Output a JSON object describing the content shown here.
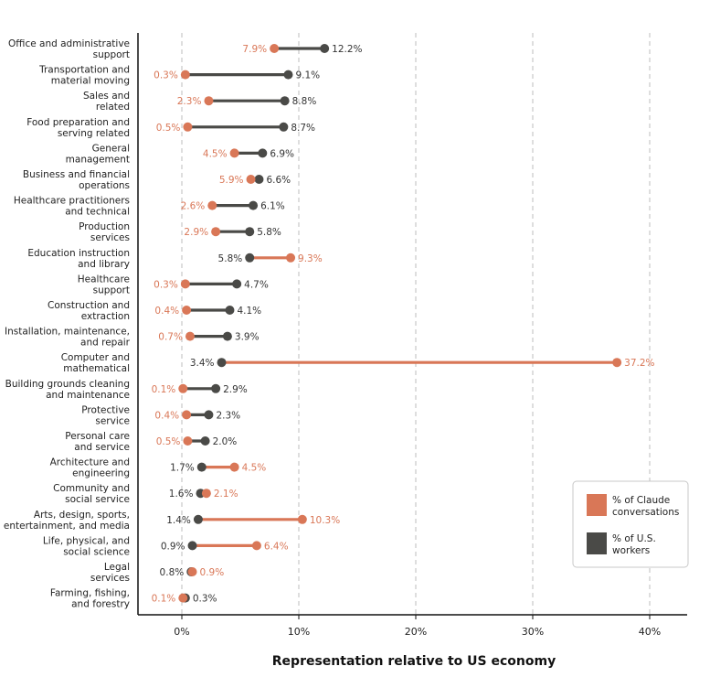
{
  "chart_data": {
    "type": "dumbbell",
    "xlabel": "Representation relative to US economy",
    "xlim": [
      -4,
      43
    ],
    "xticks": [
      "0%",
      "10%",
      "20%",
      "30%",
      "40%"
    ],
    "xtick_values": [
      0,
      10,
      20,
      30,
      40
    ],
    "grid": "vertical dashed",
    "legend_position": "bottom-right",
    "series": [
      {
        "name": "% of Claude conversations",
        "color": "#D97757"
      },
      {
        "name": "% of U.S. workers",
        "color": "#4A4A47"
      }
    ],
    "categories": [
      {
        "label": [
          "Office and administrative",
          "support"
        ],
        "claude": 7.9,
        "us": 12.2,
        "claude_label": "7.9%",
        "us_label": "12.2%"
      },
      {
        "label": [
          "Transportation and",
          "material moving"
        ],
        "claude": 0.3,
        "us": 9.1,
        "claude_label": "0.3%",
        "us_label": "9.1%"
      },
      {
        "label": [
          "Sales and",
          "related"
        ],
        "claude": 2.3,
        "us": 8.8,
        "claude_label": "2.3%",
        "us_label": "8.8%"
      },
      {
        "label": [
          "Food preparation and",
          "serving related"
        ],
        "claude": 0.5,
        "us": 8.7,
        "claude_label": "0.5%",
        "us_label": "8.7%"
      },
      {
        "label": [
          "General",
          "management"
        ],
        "claude": 4.5,
        "us": 6.9,
        "claude_label": "4.5%",
        "us_label": "6.9%"
      },
      {
        "label": [
          "Business and financial",
          "operations"
        ],
        "claude": 5.9,
        "us": 6.6,
        "claude_label": "5.9%",
        "us_label": "6.6%"
      },
      {
        "label": [
          "Healthcare practitioners",
          "and technical"
        ],
        "claude": 2.6,
        "us": 6.1,
        "claude_label": "2.6%",
        "us_label": "6.1%"
      },
      {
        "label": [
          "Production",
          "services"
        ],
        "claude": 2.9,
        "us": 5.8,
        "claude_label": "2.9%",
        "us_label": "5.8%"
      },
      {
        "label": [
          "Education instruction",
          "and library"
        ],
        "claude": 9.3,
        "us": 5.8,
        "claude_label": "9.3%",
        "us_label": "5.8%"
      },
      {
        "label": [
          "Healthcare",
          "support"
        ],
        "claude": 0.3,
        "us": 4.7,
        "claude_label": "0.3%",
        "us_label": "4.7%"
      },
      {
        "label": [
          "Construction and",
          "extraction"
        ],
        "claude": 0.4,
        "us": 4.1,
        "claude_label": "0.4%",
        "us_label": "4.1%"
      },
      {
        "label": [
          "Installation, maintenance,",
          "and repair"
        ],
        "claude": 0.7,
        "us": 3.9,
        "claude_label": "0.7%",
        "us_label": "3.9%"
      },
      {
        "label": [
          "Computer and",
          "mathematical"
        ],
        "claude": 37.2,
        "us": 3.4,
        "claude_label": "37.2%",
        "us_label": "3.4%"
      },
      {
        "label": [
          "Building grounds cleaning",
          "and maintenance"
        ],
        "claude": 0.1,
        "us": 2.9,
        "claude_label": "0.1%",
        "us_label": "2.9%"
      },
      {
        "label": [
          "Protective",
          "service"
        ],
        "claude": 0.4,
        "us": 2.3,
        "claude_label": "0.4%",
        "us_label": "2.3%"
      },
      {
        "label": [
          "Personal care",
          "and service"
        ],
        "claude": 0.5,
        "us": 2.0,
        "claude_label": "0.5%",
        "us_label": "2.0%"
      },
      {
        "label": [
          "Architecture and",
          "engineering"
        ],
        "claude": 4.5,
        "us": 1.7,
        "claude_label": "4.5%",
        "us_label": "1.7%"
      },
      {
        "label": [
          "Community and",
          "social service"
        ],
        "claude": 2.1,
        "us": 1.6,
        "claude_label": "2.1%",
        "us_label": "1.6%"
      },
      {
        "label": [
          "Arts, design, sports,",
          "entertainment, and media"
        ],
        "claude": 10.3,
        "us": 1.4,
        "claude_label": "10.3%",
        "us_label": "1.4%"
      },
      {
        "label": [
          "Life, physical, and",
          "social science"
        ],
        "claude": 6.4,
        "us": 0.9,
        "claude_label": "6.4%",
        "us_label": "0.9%"
      },
      {
        "label": [
          "Legal",
          "services"
        ],
        "claude": 0.9,
        "us": 0.8,
        "claude_label": "0.9%",
        "us_label": "0.8%"
      },
      {
        "label": [
          "Farming, fishing,",
          "and forestry"
        ],
        "claude": 0.1,
        "us": 0.3,
        "claude_label": "0.1%",
        "us_label": "0.3%"
      }
    ]
  }
}
